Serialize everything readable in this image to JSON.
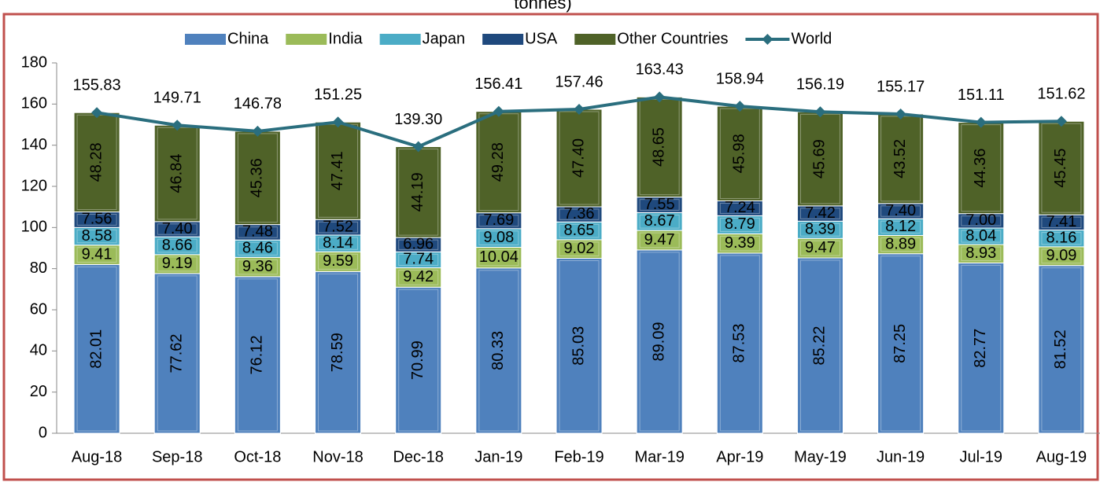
{
  "chart_data": {
    "type": "stacked-bar-line",
    "title": "tonnes)",
    "categories": [
      "Aug-18",
      "Sep-18",
      "Oct-18",
      "Nov-18",
      "Dec-18",
      "Jan-19",
      "Feb-19",
      "Mar-19",
      "Apr-19",
      "May-19",
      "Jun-19",
      "Jul-19",
      "Aug-19"
    ],
    "series": [
      {
        "name": "China",
        "color": "#4f81bd",
        "values": [
          82.01,
          77.62,
          76.12,
          78.59,
          70.99,
          80.33,
          85.03,
          89.09,
          87.53,
          85.22,
          87.25,
          82.77,
          81.52
        ],
        "value_labels": [
          "82.01",
          "77.62",
          "76.12",
          "78.59",
          "70.99",
          "80.33",
          "85.03",
          "89.09",
          "87.53",
          "85.22",
          "87.25",
          "82.77",
          "81.52"
        ]
      },
      {
        "name": "India",
        "color": "#9bbb59",
        "values": [
          9.41,
          9.19,
          9.36,
          9.59,
          9.42,
          10.04,
          9.02,
          9.47,
          9.39,
          9.47,
          8.89,
          8.93,
          9.09
        ],
        "value_labels": [
          "9.41",
          "9.19",
          "9.36",
          "9.59",
          "9.42",
          "10.04",
          "9.02",
          "9.47",
          "9.39",
          "9.47",
          "8.89",
          "8.93",
          "9.09"
        ]
      },
      {
        "name": "Japan",
        "color": "#4bacc6",
        "values": [
          8.58,
          8.66,
          8.46,
          8.14,
          7.74,
          9.08,
          8.65,
          8.67,
          8.79,
          8.39,
          8.12,
          8.04,
          8.16
        ],
        "value_labels": [
          "8.58",
          "8.66",
          "8.46",
          "8.14",
          "7.74",
          "9.08",
          "8.65",
          "8.67",
          "8.79",
          "8.39",
          "8.12",
          "8.04",
          "8.16"
        ]
      },
      {
        "name": "USA",
        "color": "#1f497d",
        "values": [
          7.56,
          7.4,
          7.48,
          7.52,
          6.96,
          7.69,
          7.36,
          7.55,
          7.24,
          7.42,
          7.4,
          7.0,
          7.41
        ],
        "value_labels": [
          "7.56",
          "7.40",
          "7.48",
          "7.52",
          "6.96",
          "7.69",
          "7.36",
          "7.55",
          "7.24",
          "7.42",
          "7.40",
          "7.00",
          "7.41"
        ]
      },
      {
        "name": "Other Countries",
        "color": "#4f6228",
        "values": [
          48.28,
          46.84,
          45.36,
          47.41,
          44.19,
          49.28,
          47.4,
          48.65,
          45.98,
          45.69,
          43.52,
          44.36,
          45.45
        ],
        "value_labels": [
          "48.28",
          "46.84",
          "45.36",
          "47.41",
          "44.19",
          "49.28",
          "47.40",
          "48.65",
          "45.98",
          "45.69",
          "43.52",
          "44.36",
          "45.45"
        ]
      },
      {
        "name": "World",
        "color": "#2a6e7e",
        "type": "line",
        "values": [
          155.83,
          149.71,
          146.78,
          151.25,
          139.3,
          156.41,
          157.46,
          163.43,
          158.94,
          156.19,
          155.17,
          151.11,
          151.62
        ],
        "value_labels": [
          "155.83",
          "149.71",
          "146.78",
          "151.25",
          "139.30",
          "156.41",
          "157.46",
          "163.43",
          "158.94",
          "156.19",
          "155.17",
          "151.11",
          "151.62"
        ]
      }
    ],
    "ylim": [
      0,
      180
    ],
    "yticks": [
      0,
      20,
      40,
      60,
      80,
      100,
      120,
      140,
      160,
      180
    ],
    "grid": false,
    "legend": "top"
  }
}
